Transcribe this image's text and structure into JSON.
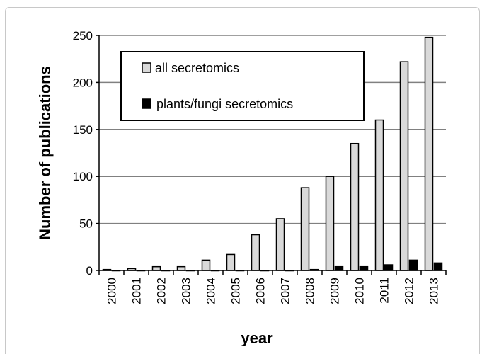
{
  "chart_data": {
    "type": "bar",
    "categories": [
      "2000",
      "2001",
      "2002",
      "2003",
      "2004",
      "2005",
      "2006",
      "2007",
      "2008",
      "2009",
      "2010",
      "2011",
      "2012",
      "2013"
    ],
    "series": [
      {
        "name": "all secretomics",
        "values": [
          1,
          2,
          4,
          4,
          11,
          17,
          38,
          55,
          88,
          100,
          135,
          160,
          222,
          248
        ],
        "color": "#d9d9d9"
      },
      {
        "name": "plants/fungi secretomics",
        "values": [
          0,
          0,
          0,
          0,
          0,
          0,
          0,
          0,
          1,
          4,
          4,
          6,
          11,
          8
        ],
        "color": "#000000"
      }
    ],
    "xlabel": "year",
    "ylabel": "Number of publications",
    "ylim": [
      0,
      250
    ],
    "yticks": [
      0,
      50,
      100,
      150,
      200,
      250
    ],
    "grid": true,
    "legend_position": "top-left"
  }
}
